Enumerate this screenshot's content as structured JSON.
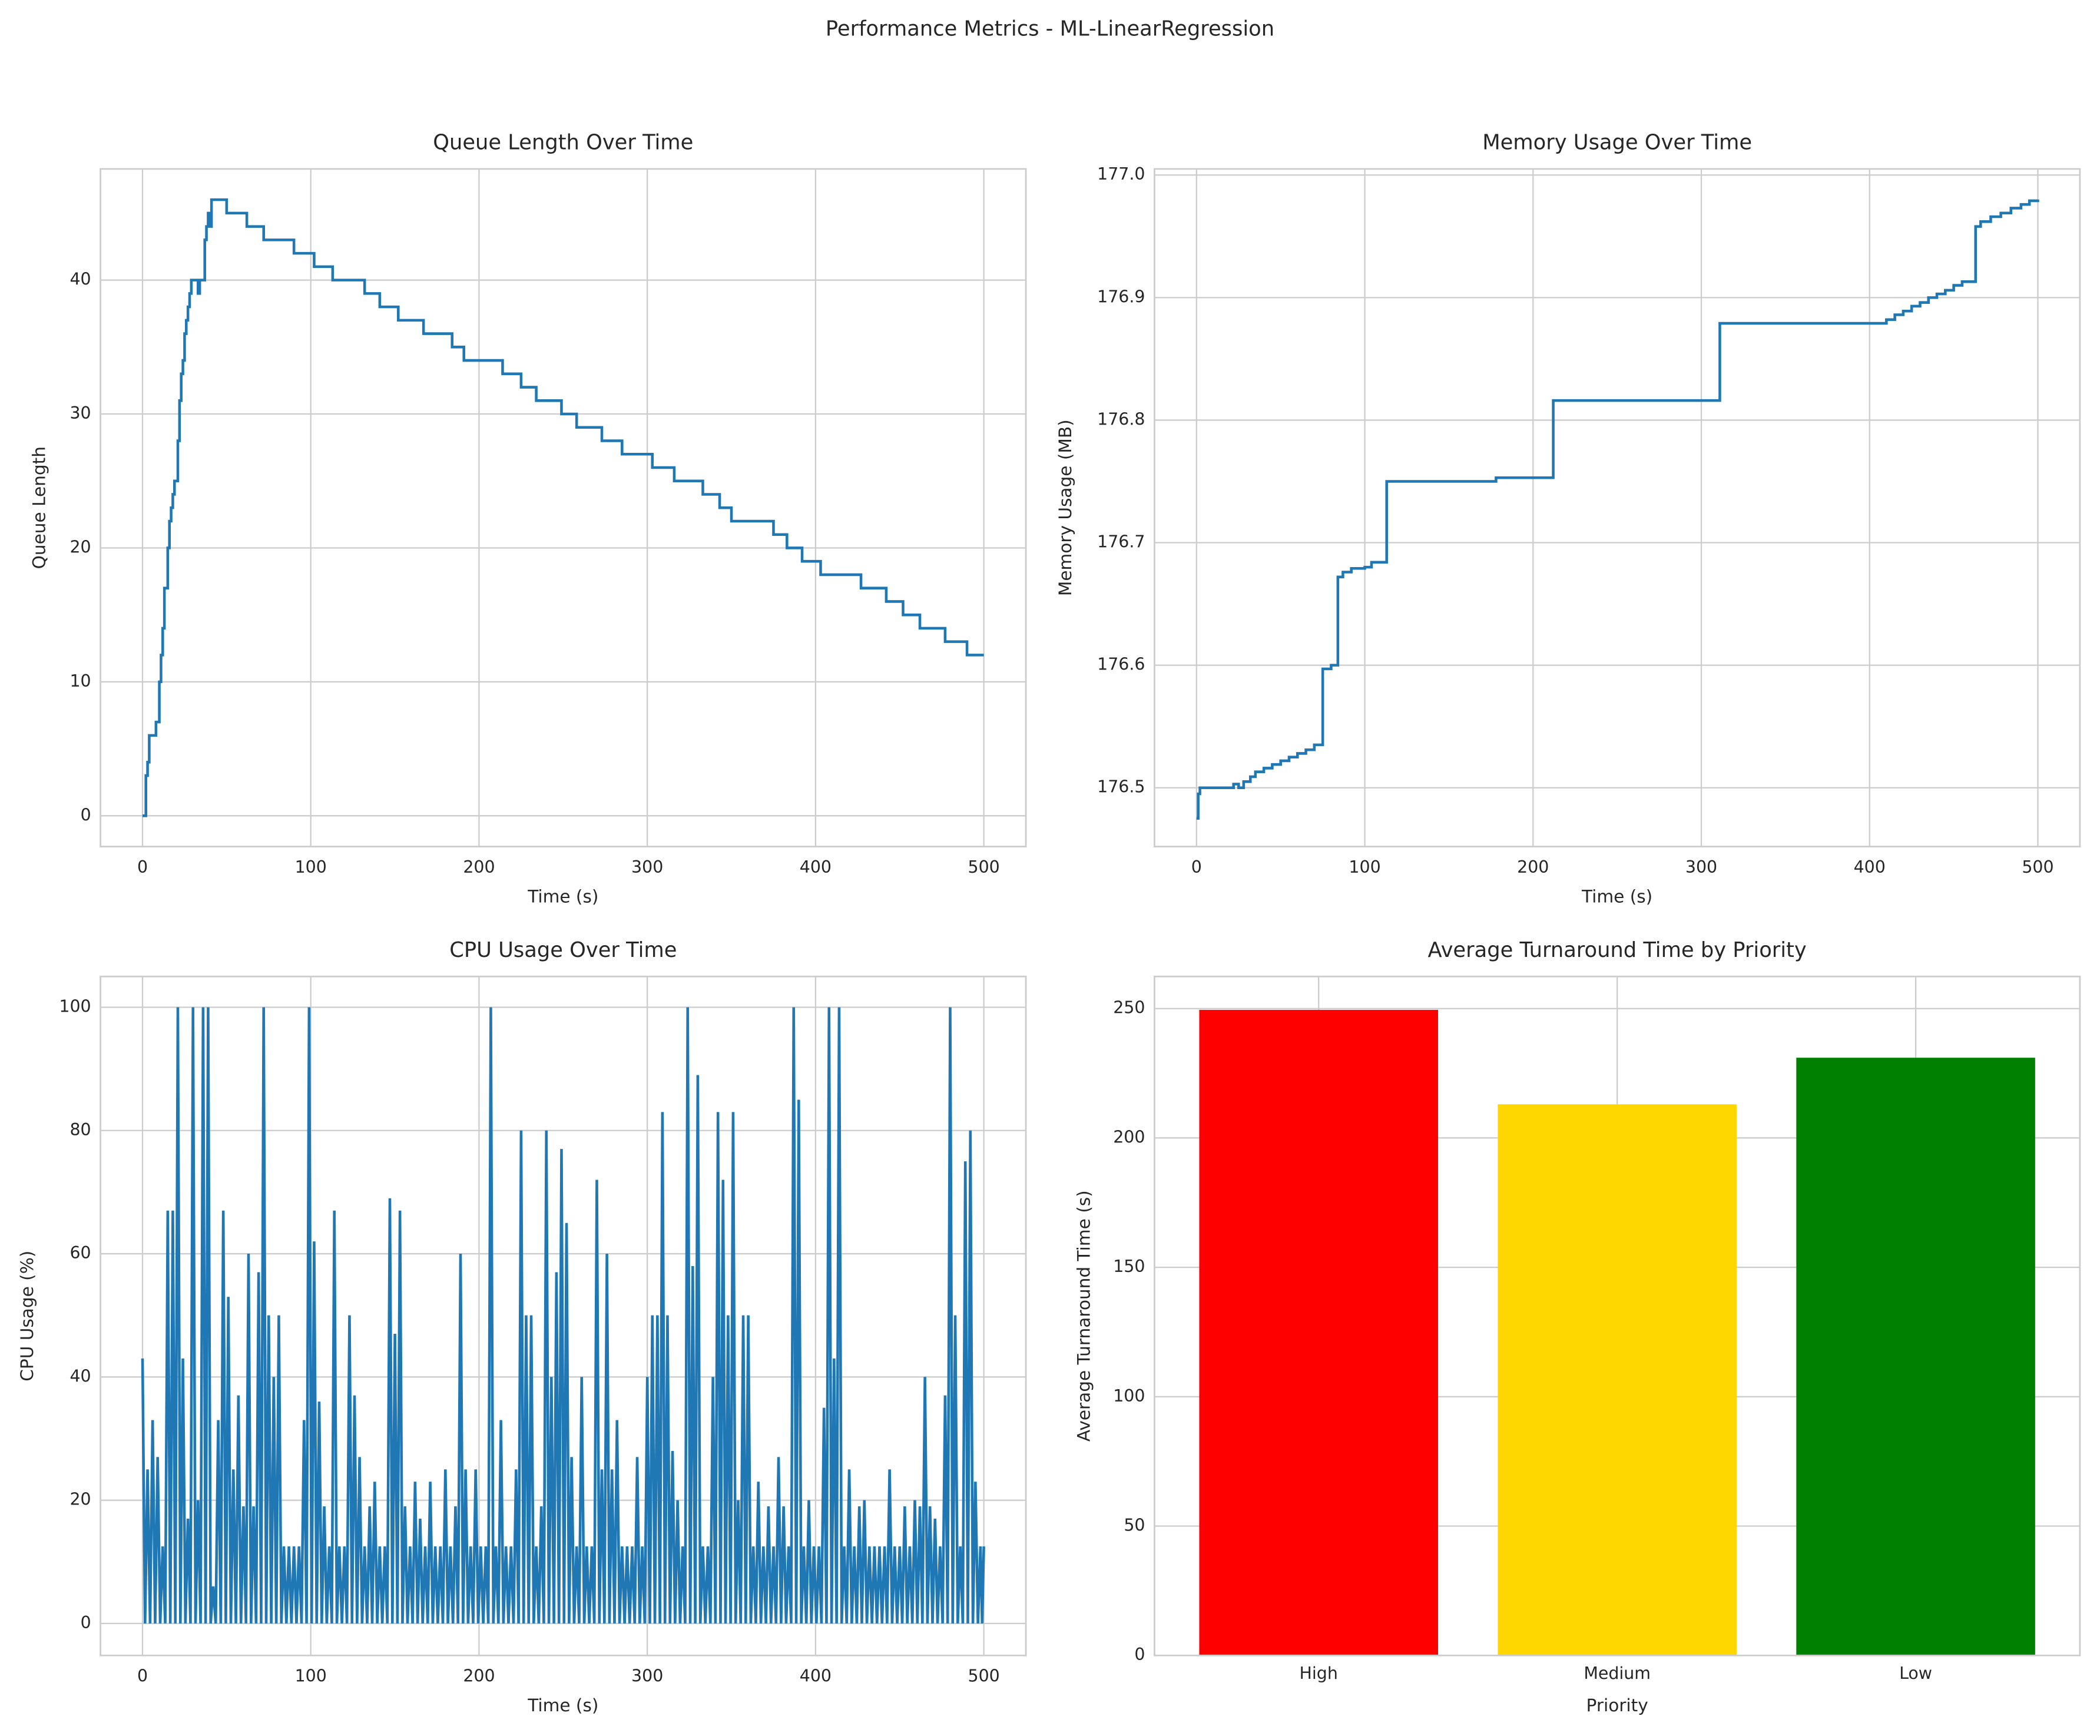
{
  "title": "Performance Metrics - ML-LinearRegression",
  "chart_data": [
    {
      "type": "line",
      "drawstyle": "steps-post",
      "title": "Queue Length Over Time",
      "xlabel": "Time (s)",
      "ylabel": "Queue Length",
      "color": "#1f77b4",
      "grid": true,
      "x": [
        0,
        2,
        3,
        4,
        8,
        10,
        11,
        12,
        13,
        15,
        16,
        17,
        18,
        19,
        21,
        22,
        23,
        24,
        25,
        26,
        27,
        28,
        29,
        33,
        34,
        37,
        38,
        39,
        40,
        41,
        50,
        62,
        72,
        90,
        102,
        113,
        132,
        141,
        152,
        167,
        184,
        191,
        214,
        225,
        234,
        249,
        258,
        273,
        285,
        303,
        316,
        333,
        343,
        350,
        375,
        383,
        392,
        403,
        427,
        442,
        452,
        462,
        477,
        490,
        500
      ],
      "values": [
        0,
        3,
        4,
        6,
        7,
        10,
        12,
        14,
        17,
        20,
        22,
        23,
        24,
        25,
        28,
        31,
        33,
        34,
        36,
        37,
        38,
        39,
        40,
        39,
        40,
        43,
        44,
        45,
        44,
        46,
        45,
        44,
        43,
        42,
        41,
        40,
        39,
        38,
        37,
        36,
        35,
        34,
        33,
        32,
        31,
        30,
        29,
        28,
        27,
        26,
        25,
        24,
        23,
        22,
        21,
        20,
        19,
        18,
        17,
        16,
        15,
        14,
        13,
        12,
        12
      ],
      "xlim": [
        -25,
        525
      ],
      "xticks": [
        0,
        100,
        200,
        300,
        400,
        500
      ],
      "ylim": [
        -2.3,
        48.3
      ],
      "yticks": [
        0,
        10,
        20,
        30,
        40
      ]
    },
    {
      "type": "line",
      "drawstyle": "steps-post",
      "title": "Memory Usage Over Time",
      "xlabel": "Time (s)",
      "ylabel": "Memory Usage (MB)",
      "color": "#1f77b4",
      "grid": true,
      "x": [
        0,
        1,
        2,
        22,
        25,
        28,
        32,
        35,
        40,
        45,
        50,
        55,
        60,
        65,
        70,
        75,
        80,
        84,
        87,
        92,
        100,
        104,
        113,
        178,
        212,
        311,
        410,
        415,
        420,
        425,
        430,
        435,
        440,
        445,
        450,
        455,
        463,
        466,
        472,
        478,
        484,
        490,
        495,
        500
      ],
      "values": [
        176.475,
        176.495,
        176.5,
        176.503,
        176.5,
        176.505,
        176.509,
        176.513,
        176.516,
        176.519,
        176.522,
        176.525,
        176.528,
        176.531,
        176.535,
        176.597,
        176.6,
        176.672,
        176.676,
        176.679,
        176.68,
        176.684,
        176.75,
        176.753,
        176.816,
        176.879,
        176.882,
        176.886,
        176.889,
        176.893,
        176.896,
        176.9,
        176.903,
        176.906,
        176.91,
        176.913,
        176.958,
        176.962,
        176.966,
        176.969,
        176.973,
        176.976,
        176.979,
        176.98
      ],
      "xlim": [
        -25,
        525
      ],
      "xticks": [
        0,
        100,
        200,
        300,
        400,
        500
      ],
      "ylim": [
        176.452,
        177.005
      ],
      "yticks": [
        176.5,
        176.6,
        176.7,
        176.8,
        176.9,
        {
          "value": 177,
          "label": "177.0"
        }
      ]
    },
    {
      "type": "line",
      "title": "CPU Usage Over Time",
      "xlabel": "Time (s)",
      "ylabel": "CPU Usage (%)",
      "color": "#1f77b4",
      "grid": true,
      "x": [
        0,
        1.5,
        3,
        4.5,
        6,
        7.5,
        9,
        10.5,
        12,
        13.5,
        15,
        16.5,
        18,
        19.5,
        21,
        22.5,
        24,
        25.5,
        27,
        28.5,
        30,
        31.5,
        33,
        34.5,
        36,
        37.5,
        39,
        40.5,
        42,
        43.5,
        45,
        46.5,
        48,
        49.5,
        51,
        52.5,
        54,
        55.5,
        57,
        58.5,
        60,
        61.5,
        63,
        64.5,
        66,
        67.5,
        69,
        70.5,
        72,
        73.5,
        75,
        76.5,
        78,
        79.5,
        81,
        82.5,
        84,
        85.5,
        87,
        88.5,
        90,
        91.5,
        93,
        94.5,
        96,
        97.5,
        99,
        100.5,
        102,
        103.5,
        105,
        106.5,
        108,
        109.5,
        111,
        112.5,
        114,
        115.5,
        117,
        118.5,
        120,
        121.5,
        123,
        124.5,
        126,
        127.5,
        129,
        130.5,
        132,
        133.5,
        135,
        136.5,
        138,
        139.5,
        141,
        142.5,
        144,
        145.5,
        147,
        148.5,
        150,
        151.5,
        153,
        154.5,
        156,
        157.5,
        159,
        160.5,
        162,
        163.5,
        165,
        166.5,
        168,
        169.5,
        171,
        172.5,
        174,
        175.5,
        177,
        178.5,
        180,
        181.5,
        183,
        184.5,
        186,
        187.5,
        189,
        190.5,
        192,
        193.5,
        195,
        196.5,
        198,
        199.5,
        201,
        202.5,
        204,
        205.5,
        207,
        208.5,
        210,
        211.5,
        213,
        214.5,
        216,
        217.5,
        219,
        220.5,
        222,
        223.5,
        225,
        226.5,
        228,
        229.5,
        231,
        232.5,
        234,
        235.5,
        237,
        238.5,
        240,
        241.5,
        243,
        244.5,
        246,
        247.5,
        249,
        250.5,
        252,
        253.5,
        255,
        256.5,
        258,
        259.5,
        261,
        262.5,
        264,
        265.5,
        267,
        268.5,
        270,
        271.5,
        273,
        274.5,
        276,
        277.5,
        279,
        280.5,
        282,
        283.5,
        285,
        286.5,
        288,
        289.5,
        291,
        292.5,
        294,
        295.5,
        297,
        298.5,
        300,
        301.5,
        303,
        304.5,
        306,
        307.5,
        309,
        310.5,
        312,
        313.5,
        315,
        316.5,
        318,
        319.5,
        321,
        322.5,
        324,
        325.5,
        327,
        328.5,
        330,
        331.5,
        333,
        334.5,
        336,
        337.5,
        339,
        340.5,
        342,
        343.5,
        345,
        346.5,
        348,
        349.5,
        351,
        352.5,
        354,
        355.5,
        357,
        358.5,
        360,
        361.5,
        363,
        364.5,
        366,
        367.5,
        369,
        370.5,
        372,
        373.5,
        375,
        376.5,
        378,
        379.5,
        381,
        382.5,
        384,
        385.5,
        387,
        388.5,
        390,
        391.5,
        393,
        394.5,
        396,
        397.5,
        399,
        400.5,
        402,
        403.5,
        405,
        406.5,
        408,
        409.5,
        411,
        412.5,
        414,
        415.5,
        417,
        418.5,
        420,
        421.5,
        423,
        424.5,
        426,
        427.5,
        429,
        430.5,
        432,
        433.5,
        435,
        436.5,
        438,
        439.5,
        441,
        442.5,
        444,
        445.5,
        447,
        448.5,
        450,
        451.5,
        453,
        454.5,
        456,
        457.5,
        459,
        460.5,
        462,
        463.5,
        465,
        466.5,
        468,
        469.5,
        471,
        472.5,
        474,
        475.5,
        477,
        478.5,
        480,
        481.5,
        483,
        484.5,
        486,
        487.5,
        489,
        490.5,
        492,
        493.5,
        495,
        496.5,
        498,
        499,
        500
      ],
      "values": [
        43,
        0,
        25,
        0,
        33,
        0,
        27,
        0,
        12.5,
        0,
        67,
        0,
        67,
        0,
        100,
        0,
        43,
        0,
        17,
        0,
        100,
        0,
        20,
        0,
        100,
        0,
        100,
        0,
        6,
        0,
        33,
        0,
        67,
        0,
        53,
        0,
        25,
        0,
        37,
        0,
        19,
        0,
        60,
        0,
        19,
        0,
        57,
        0,
        100,
        0,
        50,
        0,
        40,
        0,
        50,
        0,
        12.5,
        0,
        12.5,
        0,
        12.5,
        0,
        12.5,
        0,
        33,
        0,
        100,
        0,
        62,
        0,
        36,
        0,
        19,
        0,
        12.5,
        0,
        67,
        0,
        12.5,
        0,
        12.5,
        0,
        50,
        0,
        37,
        0,
        27,
        0,
        12.5,
        0,
        19,
        0,
        23,
        0,
        12.5,
        0,
        12.5,
        0,
        69,
        0,
        47,
        0,
        67,
        0,
        19,
        0,
        12.5,
        0,
        23,
        0,
        17,
        0,
        12.5,
        0,
        23,
        0,
        12.5,
        0,
        12.5,
        0,
        25,
        0,
        12.5,
        0,
        19,
        0,
        60,
        0,
        25,
        0,
        12.5,
        0,
        25,
        0,
        12.5,
        0,
        12.5,
        0,
        100,
        0,
        12.5,
        0,
        33,
        0,
        12.5,
        0,
        12.5,
        0,
        25,
        0,
        80,
        0,
        50,
        0,
        50,
        0,
        12.5,
        0,
        19,
        0,
        80,
        0,
        40,
        0,
        57,
        0,
        77,
        0,
        65,
        0,
        27,
        0,
        12.5,
        0,
        40,
        0,
        12.5,
        0,
        12.5,
        0,
        72,
        0,
        25,
        0,
        60,
        0,
        25,
        0,
        33,
        0,
        12.5,
        0,
        12.5,
        0,
        12.5,
        0,
        27,
        0,
        12.5,
        0,
        40,
        0,
        50,
        0,
        50,
        0,
        83,
        0,
        50,
        0,
        28,
        0,
        20,
        0,
        12.5,
        0,
        100,
        0,
        58,
        0,
        89,
        0,
        12.5,
        0,
        12.5,
        0,
        40,
        0,
        83,
        0,
        72,
        0,
        50,
        0,
        83,
        0,
        20,
        0,
        50,
        0,
        50,
        0,
        12.5,
        0,
        23,
        0,
        12.5,
        0,
        19,
        0,
        12.5,
        0,
        27,
        0,
        19,
        0,
        12.5,
        0,
        100,
        0,
        85,
        0,
        12.5,
        0,
        20,
        0,
        12.5,
        0,
        12.5,
        0,
        35,
        0,
        100,
        0,
        43,
        0,
        100,
        0,
        12.5,
        0,
        25,
        0,
        12.5,
        0,
        19,
        0,
        20,
        0,
        12.5,
        0,
        12.5,
        0,
        12.5,
        0,
        12.5,
        0,
        25,
        0,
        12.5,
        0,
        12.5,
        0,
        19,
        0,
        12.5,
        0,
        20,
        0,
        19,
        0,
        40,
        0,
        19,
        0,
        17,
        0,
        12.5,
        0,
        37,
        0,
        100,
        0,
        50,
        0,
        12.5,
        0,
        75,
        0,
        80,
        0,
        23,
        0,
        12.5,
        0,
        12.5
      ],
      "xlim": [
        -25,
        525
      ],
      "xticks": [
        0,
        100,
        200,
        300,
        400,
        500
      ],
      "ylim": [
        -5.2,
        105
      ],
      "yticks": [
        0,
        20,
        40,
        60,
        80,
        100
      ]
    },
    {
      "type": "bar",
      "title": "Average Turnaround Time by Priority",
      "xlabel": "Priority",
      "ylabel": "Average Turnaround Time (s)",
      "grid": true,
      "categories": [
        "High",
        "Medium",
        "Low"
      ],
      "values": [
        249.5,
        213,
        231
      ],
      "colors": [
        "#ff0000",
        "#ffd700",
        "#008000"
      ],
      "ylim": [
        0,
        262.4
      ],
      "yticks": [
        0,
        50,
        100,
        150,
        200,
        250
      ]
    }
  ]
}
